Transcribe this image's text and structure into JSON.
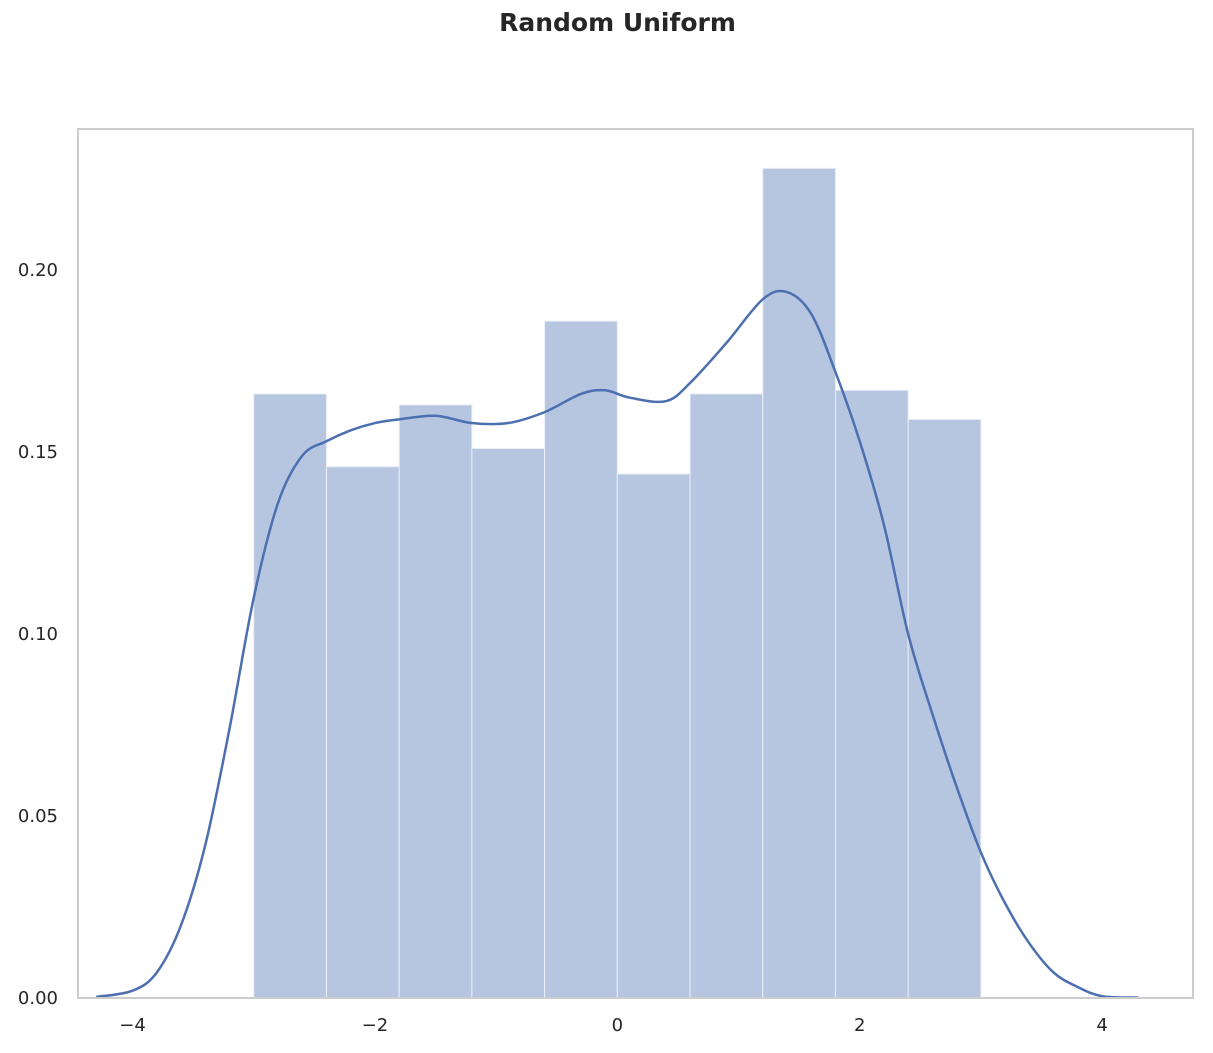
{
  "chart_data": {
    "type": "bar",
    "title": "Random Uniform",
    "xlabel": "",
    "ylabel": "",
    "xlim": [
      -4.45,
      4.75
    ],
    "ylim": [
      0,
      0.2388
    ],
    "xticks": [
      -4,
      -2,
      0,
      2,
      4
    ],
    "xtick_labels": [
      "−4",
      "−2",
      "0",
      "2",
      "4"
    ],
    "yticks": [
      0.0,
      0.05,
      0.1,
      0.15,
      0.2
    ],
    "ytick_labels": [
      "0.00",
      "0.05",
      "0.10",
      "0.15",
      "0.20"
    ],
    "grid": false,
    "bar_color": "#b7c6e0",
    "line_color": "#4c6faf",
    "histogram": {
      "bin_edges": [
        -3.0,
        -2.4,
        -1.8,
        -1.2,
        -0.6,
        0.0,
        0.6,
        1.2,
        1.8,
        2.4,
        3.0
      ],
      "densities": [
        0.166,
        0.146,
        0.163,
        0.151,
        0.186,
        0.144,
        0.166,
        0.228,
        0.167,
        0.159
      ]
    },
    "kde": {
      "x": [
        -4.3,
        -4.0,
        -3.8,
        -3.6,
        -3.4,
        -3.2,
        -3.0,
        -2.8,
        -2.6,
        -2.4,
        -2.2,
        -2.0,
        -1.8,
        -1.5,
        -1.2,
        -0.9,
        -0.6,
        -0.3,
        -0.1,
        0.1,
        0.4,
        0.6,
        0.9,
        1.2,
        1.4,
        1.6,
        1.8,
        2.0,
        2.2,
        2.4,
        2.6,
        2.8,
        3.0,
        3.2,
        3.4,
        3.6,
        3.8,
        4.0,
        4.3
      ],
      "y": [
        0.0003,
        0.002,
        0.007,
        0.02,
        0.042,
        0.074,
        0.11,
        0.136,
        0.149,
        0.153,
        0.156,
        0.158,
        0.159,
        0.16,
        0.158,
        0.158,
        0.161,
        0.166,
        0.167,
        0.165,
        0.164,
        0.169,
        0.18,
        0.192,
        0.194,
        0.188,
        0.172,
        0.153,
        0.13,
        0.1,
        0.078,
        0.058,
        0.04,
        0.026,
        0.015,
        0.007,
        0.003,
        0.0005,
        0.0001
      ]
    }
  }
}
